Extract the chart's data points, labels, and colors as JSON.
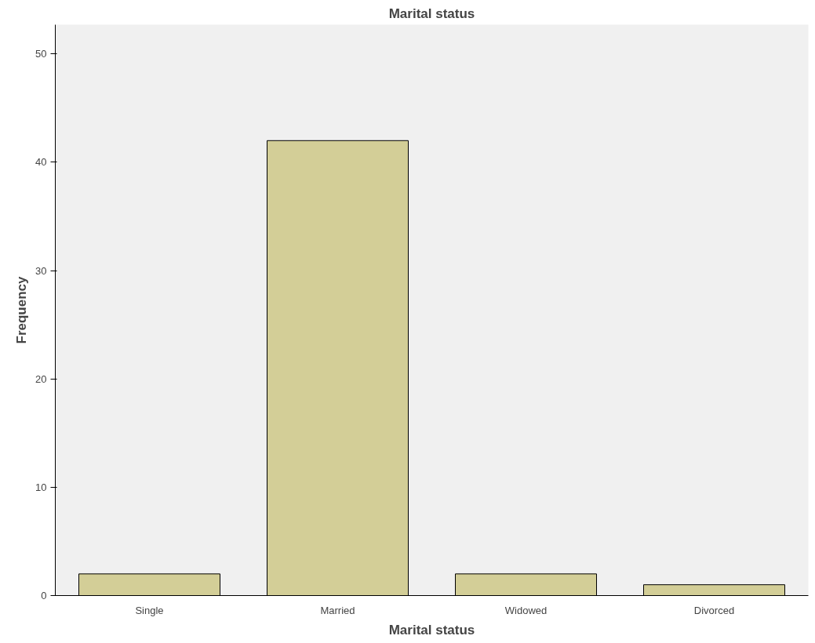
{
  "chart_data": {
    "type": "bar",
    "title": "Marital status",
    "xlabel": "Marital status",
    "ylabel": "Frequency",
    "categories": [
      "Single",
      "Married",
      "Widowed",
      "Divorced"
    ],
    "values": [
      2,
      42,
      2,
      1
    ],
    "color": "#d3ce97",
    "ylim": [
      0,
      52.7
    ],
    "yticks": [
      0,
      10,
      20,
      30,
      40,
      50
    ],
    "grid": false
  }
}
